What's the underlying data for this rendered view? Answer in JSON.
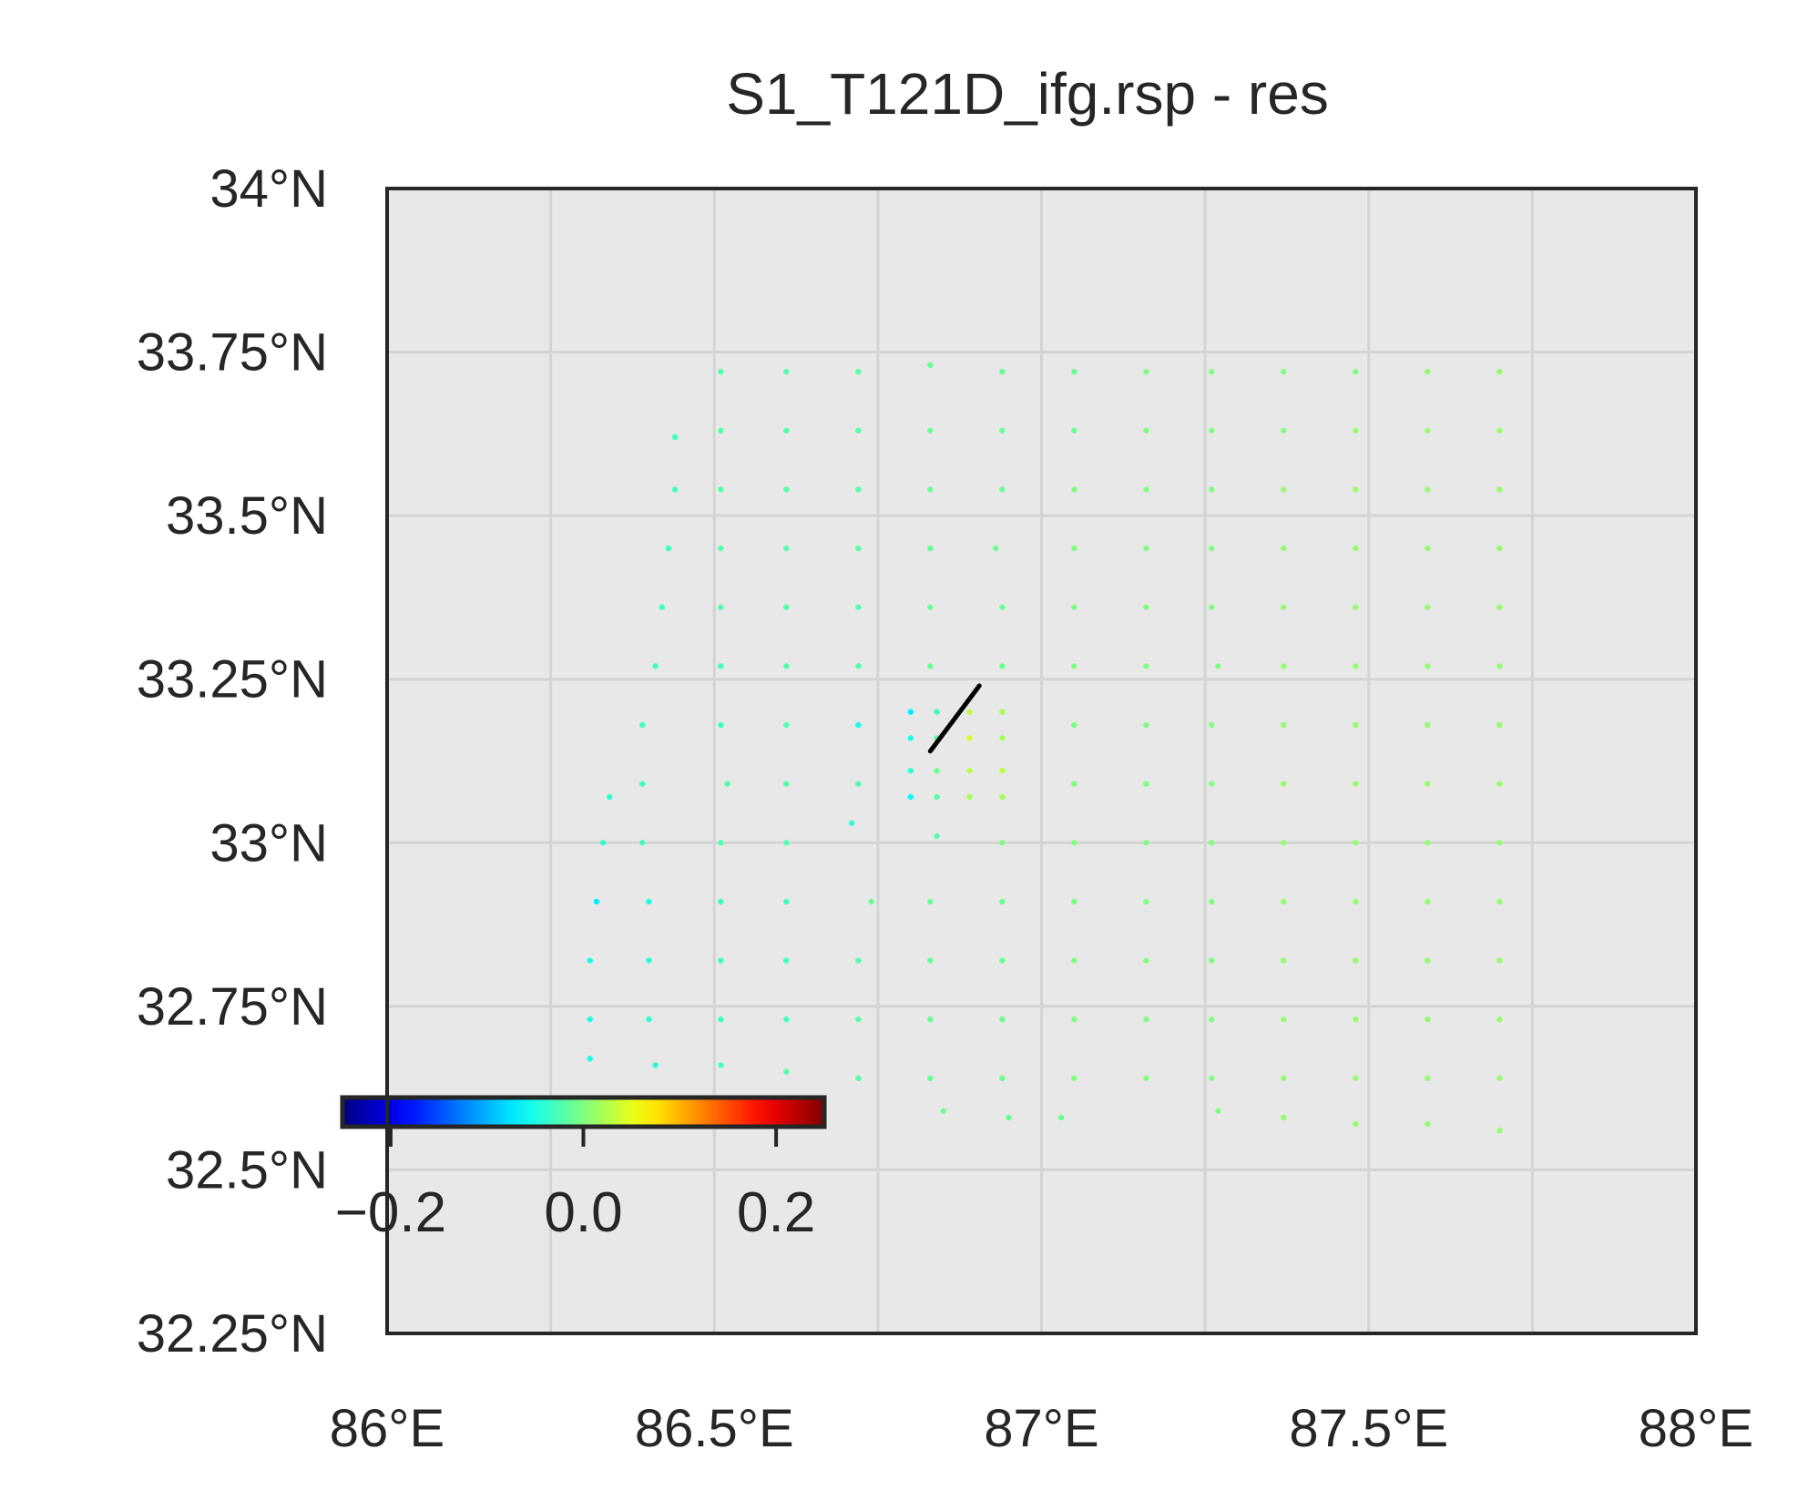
{
  "chart_data": {
    "type": "scatter",
    "title": "S1_T121D_ifg.rsp - res",
    "xlim": [
      86.0,
      88.0
    ],
    "ylim": [
      32.25,
      34.0
    ],
    "x_ticks": [
      86.0,
      86.5,
      87.0,
      87.5,
      88.0
    ],
    "x_tick_labels": [
      "86°E",
      "86.5°E",
      "87°E",
      "87.5°E",
      "88°E"
    ],
    "y_ticks": [
      32.25,
      32.5,
      32.75,
      33.0,
      33.25,
      33.5,
      33.75,
      34.0
    ],
    "y_tick_labels": [
      "32.25°N",
      "32.5°N",
      "32.75°N",
      "33°N",
      "33.25°N",
      "33.5°N",
      "33.75°N",
      "34°N"
    ],
    "grid": true,
    "grid_minor_step_deg": 0.25,
    "background_color": "#e8e8e8",
    "grid_color": "#d4d4d4",
    "colormap": "jet",
    "color_range": [
      -0.25,
      0.25
    ],
    "colorbar": {
      "placement": "inside-lower-left",
      "orientation": "horizontal",
      "ticks": [
        -0.2,
        0.0,
        0.2
      ],
      "tick_labels": [
        "−0.2",
        "0.0",
        "0.2"
      ]
    },
    "fault_trace": {
      "color": "#000000",
      "points": [
        [
          86.83,
          33.14
        ],
        [
          86.905,
          33.24
        ]
      ]
    },
    "points": [
      {
        "lon": 86.51,
        "lat": 33.72,
        "v": -0.02
      },
      {
        "lon": 86.61,
        "lat": 33.72,
        "v": -0.02
      },
      {
        "lon": 86.72,
        "lat": 33.72,
        "v": -0.02
      },
      {
        "lon": 86.83,
        "lat": 33.73,
        "v": -0.01
      },
      {
        "lon": 86.94,
        "lat": 33.72,
        "v": -0.01
      },
      {
        "lon": 87.05,
        "lat": 33.72,
        "v": -0.01
      },
      {
        "lon": 87.16,
        "lat": 33.72,
        "v": 0.0
      },
      {
        "lon": 87.26,
        "lat": 33.72,
        "v": 0.0
      },
      {
        "lon": 87.37,
        "lat": 33.72,
        "v": 0.0
      },
      {
        "lon": 87.48,
        "lat": 33.72,
        "v": 0.0
      },
      {
        "lon": 87.59,
        "lat": 33.72,
        "v": 0.01
      },
      {
        "lon": 87.7,
        "lat": 33.72,
        "v": 0.01
      },
      {
        "lon": 86.44,
        "lat": 33.62,
        "v": -0.03
      },
      {
        "lon": 86.51,
        "lat": 33.63,
        "v": -0.02
      },
      {
        "lon": 86.61,
        "lat": 33.63,
        "v": -0.02
      },
      {
        "lon": 86.72,
        "lat": 33.63,
        "v": -0.02
      },
      {
        "lon": 86.83,
        "lat": 33.63,
        "v": -0.01
      },
      {
        "lon": 86.94,
        "lat": 33.63,
        "v": -0.01
      },
      {
        "lon": 87.05,
        "lat": 33.63,
        "v": -0.01
      },
      {
        "lon": 87.16,
        "lat": 33.63,
        "v": 0.0
      },
      {
        "lon": 87.26,
        "lat": 33.63,
        "v": 0.0
      },
      {
        "lon": 87.37,
        "lat": 33.63,
        "v": 0.0
      },
      {
        "lon": 87.48,
        "lat": 33.63,
        "v": 0.01
      },
      {
        "lon": 87.59,
        "lat": 33.63,
        "v": 0.01
      },
      {
        "lon": 87.7,
        "lat": 33.63,
        "v": 0.01
      },
      {
        "lon": 86.44,
        "lat": 33.54,
        "v": -0.03
      },
      {
        "lon": 86.51,
        "lat": 33.54,
        "v": -0.02
      },
      {
        "lon": 86.61,
        "lat": 33.54,
        "v": -0.02
      },
      {
        "lon": 86.72,
        "lat": 33.54,
        "v": -0.02
      },
      {
        "lon": 86.83,
        "lat": 33.54,
        "v": -0.01
      },
      {
        "lon": 86.94,
        "lat": 33.54,
        "v": -0.01
      },
      {
        "lon": 87.05,
        "lat": 33.54,
        "v": 0.0
      },
      {
        "lon": 87.16,
        "lat": 33.54,
        "v": 0.0
      },
      {
        "lon": 87.26,
        "lat": 33.54,
        "v": 0.0
      },
      {
        "lon": 87.37,
        "lat": 33.54,
        "v": 0.01
      },
      {
        "lon": 87.48,
        "lat": 33.54,
        "v": 0.01
      },
      {
        "lon": 87.59,
        "lat": 33.54,
        "v": 0.01
      },
      {
        "lon": 87.7,
        "lat": 33.54,
        "v": 0.01
      },
      {
        "lon": 86.43,
        "lat": 33.45,
        "v": -0.03
      },
      {
        "lon": 86.51,
        "lat": 33.45,
        "v": -0.02
      },
      {
        "lon": 86.61,
        "lat": 33.45,
        "v": -0.02
      },
      {
        "lon": 86.72,
        "lat": 33.45,
        "v": -0.02
      },
      {
        "lon": 86.83,
        "lat": 33.45,
        "v": -0.01
      },
      {
        "lon": 86.93,
        "lat": 33.45,
        "v": -0.01
      },
      {
        "lon": 87.05,
        "lat": 33.45,
        "v": 0.0
      },
      {
        "lon": 87.16,
        "lat": 33.45,
        "v": 0.0
      },
      {
        "lon": 87.26,
        "lat": 33.45,
        "v": 0.0
      },
      {
        "lon": 87.37,
        "lat": 33.45,
        "v": 0.01
      },
      {
        "lon": 87.48,
        "lat": 33.45,
        "v": 0.01
      },
      {
        "lon": 87.59,
        "lat": 33.45,
        "v": 0.01
      },
      {
        "lon": 87.7,
        "lat": 33.45,
        "v": 0.01
      },
      {
        "lon": 86.42,
        "lat": 33.36,
        "v": -0.03
      },
      {
        "lon": 86.51,
        "lat": 33.36,
        "v": -0.02
      },
      {
        "lon": 86.61,
        "lat": 33.36,
        "v": -0.02
      },
      {
        "lon": 86.72,
        "lat": 33.36,
        "v": -0.02
      },
      {
        "lon": 86.83,
        "lat": 33.36,
        "v": -0.01
      },
      {
        "lon": 86.94,
        "lat": 33.36,
        "v": -0.01
      },
      {
        "lon": 87.05,
        "lat": 33.36,
        "v": 0.0
      },
      {
        "lon": 87.16,
        "lat": 33.36,
        "v": 0.0
      },
      {
        "lon": 87.26,
        "lat": 33.36,
        "v": 0.0
      },
      {
        "lon": 87.37,
        "lat": 33.36,
        "v": 0.01
      },
      {
        "lon": 87.48,
        "lat": 33.36,
        "v": 0.01
      },
      {
        "lon": 87.59,
        "lat": 33.36,
        "v": 0.01
      },
      {
        "lon": 87.7,
        "lat": 33.36,
        "v": 0.01
      },
      {
        "lon": 86.41,
        "lat": 33.27,
        "v": -0.03
      },
      {
        "lon": 86.51,
        "lat": 33.27,
        "v": -0.03
      },
      {
        "lon": 86.61,
        "lat": 33.27,
        "v": -0.02
      },
      {
        "lon": 86.72,
        "lat": 33.27,
        "v": -0.02
      },
      {
        "lon": 86.83,
        "lat": 33.27,
        "v": -0.01
      },
      {
        "lon": 86.94,
        "lat": 33.27,
        "v": -0.01
      },
      {
        "lon": 87.05,
        "lat": 33.27,
        "v": 0.0
      },
      {
        "lon": 87.16,
        "lat": 33.27,
        "v": 0.0
      },
      {
        "lon": 87.27,
        "lat": 33.27,
        "v": 0.0
      },
      {
        "lon": 87.37,
        "lat": 33.27,
        "v": 0.01
      },
      {
        "lon": 87.48,
        "lat": 33.27,
        "v": 0.01
      },
      {
        "lon": 87.59,
        "lat": 33.27,
        "v": 0.01
      },
      {
        "lon": 87.7,
        "lat": 33.27,
        "v": 0.01
      },
      {
        "lon": 86.39,
        "lat": 33.18,
        "v": -0.03
      },
      {
        "lon": 86.51,
        "lat": 33.18,
        "v": -0.03
      },
      {
        "lon": 86.61,
        "lat": 33.18,
        "v": -0.02
      },
      {
        "lon": 86.72,
        "lat": 33.18,
        "v": -0.05
      },
      {
        "lon": 86.8,
        "lat": 33.2,
        "v": -0.07
      },
      {
        "lon": 86.84,
        "lat": 33.2,
        "v": -0.03
      },
      {
        "lon": 86.89,
        "lat": 33.2,
        "v": 0.03
      },
      {
        "lon": 86.94,
        "lat": 33.2,
        "v": 0.02
      },
      {
        "lon": 86.8,
        "lat": 33.16,
        "v": -0.05
      },
      {
        "lon": 86.84,
        "lat": 33.16,
        "v": -0.02
      },
      {
        "lon": 86.89,
        "lat": 33.16,
        "v": 0.04
      },
      {
        "lon": 86.94,
        "lat": 33.16,
        "v": 0.02
      },
      {
        "lon": 87.05,
        "lat": 33.18,
        "v": 0.0
      },
      {
        "lon": 87.16,
        "lat": 33.18,
        "v": 0.0
      },
      {
        "lon": 87.26,
        "lat": 33.18,
        "v": 0.0
      },
      {
        "lon": 87.37,
        "lat": 33.18,
        "v": 0.01
      },
      {
        "lon": 87.48,
        "lat": 33.18,
        "v": 0.01
      },
      {
        "lon": 87.59,
        "lat": 33.18,
        "v": 0.01
      },
      {
        "lon": 87.7,
        "lat": 33.18,
        "v": 0.01
      },
      {
        "lon": 86.39,
        "lat": 33.09,
        "v": -0.03
      },
      {
        "lon": 86.52,
        "lat": 33.09,
        "v": -0.02
      },
      {
        "lon": 86.61,
        "lat": 33.09,
        "v": -0.02
      },
      {
        "lon": 86.72,
        "lat": 33.09,
        "v": -0.02
      },
      {
        "lon": 86.8,
        "lat": 33.11,
        "v": -0.04
      },
      {
        "lon": 86.84,
        "lat": 33.11,
        "v": -0.01
      },
      {
        "lon": 86.89,
        "lat": 33.11,
        "v": 0.03
      },
      {
        "lon": 86.94,
        "lat": 33.11,
        "v": 0.03
      },
      {
        "lon": 87.05,
        "lat": 33.09,
        "v": 0.0
      },
      {
        "lon": 87.16,
        "lat": 33.09,
        "v": 0.0
      },
      {
        "lon": 87.26,
        "lat": 33.09,
        "v": 0.0
      },
      {
        "lon": 87.37,
        "lat": 33.09,
        "v": 0.01
      },
      {
        "lon": 87.48,
        "lat": 33.09,
        "v": 0.01
      },
      {
        "lon": 87.59,
        "lat": 33.09,
        "v": 0.01
      },
      {
        "lon": 87.7,
        "lat": 33.09,
        "v": 0.01
      },
      {
        "lon": 86.34,
        "lat": 33.07,
        "v": -0.04
      },
      {
        "lon": 86.8,
        "lat": 33.07,
        "v": -0.06
      },
      {
        "lon": 86.84,
        "lat": 33.07,
        "v": -0.02
      },
      {
        "lon": 86.89,
        "lat": 33.07,
        "v": 0.02
      },
      {
        "lon": 86.94,
        "lat": 33.07,
        "v": 0.02
      },
      {
        "lon": 86.71,
        "lat": 33.03,
        "v": -0.04
      },
      {
        "lon": 86.33,
        "lat": 33.0,
        "v": -0.04
      },
      {
        "lon": 86.39,
        "lat": 33.0,
        "v": -0.03
      },
      {
        "lon": 86.51,
        "lat": 33.0,
        "v": -0.02
      },
      {
        "lon": 86.61,
        "lat": 33.0,
        "v": -0.02
      },
      {
        "lon": 86.84,
        "lat": 33.01,
        "v": -0.02
      },
      {
        "lon": 86.94,
        "lat": 33.0,
        "v": 0.0
      },
      {
        "lon": 87.05,
        "lat": 33.0,
        "v": 0.0
      },
      {
        "lon": 87.16,
        "lat": 33.0,
        "v": 0.0
      },
      {
        "lon": 87.26,
        "lat": 33.0,
        "v": 0.0
      },
      {
        "lon": 87.37,
        "lat": 33.0,
        "v": 0.01
      },
      {
        "lon": 87.48,
        "lat": 33.0,
        "v": 0.01
      },
      {
        "lon": 87.59,
        "lat": 33.0,
        "v": 0.01
      },
      {
        "lon": 87.7,
        "lat": 33.0,
        "v": 0.01
      },
      {
        "lon": 86.32,
        "lat": 32.91,
        "v": -0.07
      },
      {
        "lon": 86.4,
        "lat": 32.91,
        "v": -0.05
      },
      {
        "lon": 86.51,
        "lat": 32.91,
        "v": -0.03
      },
      {
        "lon": 86.61,
        "lat": 32.91,
        "v": -0.03
      },
      {
        "lon": 86.74,
        "lat": 32.91,
        "v": -0.01
      },
      {
        "lon": 86.83,
        "lat": 32.91,
        "v": -0.01
      },
      {
        "lon": 86.94,
        "lat": 32.91,
        "v": -0.01
      },
      {
        "lon": 87.05,
        "lat": 32.91,
        "v": 0.0
      },
      {
        "lon": 87.16,
        "lat": 32.91,
        "v": 0.0
      },
      {
        "lon": 87.26,
        "lat": 32.91,
        "v": 0.0
      },
      {
        "lon": 87.37,
        "lat": 32.91,
        "v": 0.01
      },
      {
        "lon": 87.48,
        "lat": 32.91,
        "v": 0.01
      },
      {
        "lon": 87.59,
        "lat": 32.91,
        "v": 0.01
      },
      {
        "lon": 87.7,
        "lat": 32.91,
        "v": 0.01
      },
      {
        "lon": 86.31,
        "lat": 32.82,
        "v": -0.05
      },
      {
        "lon": 86.4,
        "lat": 32.82,
        "v": -0.04
      },
      {
        "lon": 86.51,
        "lat": 32.82,
        "v": -0.03
      },
      {
        "lon": 86.61,
        "lat": 32.82,
        "v": -0.03
      },
      {
        "lon": 86.72,
        "lat": 32.82,
        "v": -0.02
      },
      {
        "lon": 86.83,
        "lat": 32.82,
        "v": -0.01
      },
      {
        "lon": 86.94,
        "lat": 32.82,
        "v": -0.01
      },
      {
        "lon": 87.05,
        "lat": 32.82,
        "v": 0.0
      },
      {
        "lon": 87.16,
        "lat": 32.82,
        "v": 0.0
      },
      {
        "lon": 87.26,
        "lat": 32.82,
        "v": 0.0
      },
      {
        "lon": 87.37,
        "lat": 32.82,
        "v": 0.01
      },
      {
        "lon": 87.48,
        "lat": 32.82,
        "v": 0.01
      },
      {
        "lon": 87.59,
        "lat": 32.82,
        "v": 0.01
      },
      {
        "lon": 87.7,
        "lat": 32.82,
        "v": 0.01
      },
      {
        "lon": 86.31,
        "lat": 32.73,
        "v": -0.05
      },
      {
        "lon": 86.4,
        "lat": 32.73,
        "v": -0.04
      },
      {
        "lon": 86.51,
        "lat": 32.73,
        "v": -0.03
      },
      {
        "lon": 86.61,
        "lat": 32.73,
        "v": -0.03
      },
      {
        "lon": 86.72,
        "lat": 32.73,
        "v": -0.02
      },
      {
        "lon": 86.83,
        "lat": 32.73,
        "v": -0.01
      },
      {
        "lon": 86.94,
        "lat": 32.73,
        "v": -0.01
      },
      {
        "lon": 87.05,
        "lat": 32.73,
        "v": 0.0
      },
      {
        "lon": 87.16,
        "lat": 32.73,
        "v": 0.0
      },
      {
        "lon": 87.26,
        "lat": 32.73,
        "v": 0.0
      },
      {
        "lon": 87.37,
        "lat": 32.73,
        "v": 0.01
      },
      {
        "lon": 87.48,
        "lat": 32.73,
        "v": 0.01
      },
      {
        "lon": 87.59,
        "lat": 32.73,
        "v": 0.01
      },
      {
        "lon": 87.7,
        "lat": 32.73,
        "v": 0.01
      },
      {
        "lon": 86.31,
        "lat": 32.67,
        "v": -0.05
      },
      {
        "lon": 86.41,
        "lat": 32.66,
        "v": -0.04
      },
      {
        "lon": 86.51,
        "lat": 32.66,
        "v": -0.03
      },
      {
        "lon": 86.61,
        "lat": 32.65,
        "v": -0.02
      },
      {
        "lon": 86.72,
        "lat": 32.64,
        "v": -0.02
      },
      {
        "lon": 86.83,
        "lat": 32.64,
        "v": -0.01
      },
      {
        "lon": 86.94,
        "lat": 32.64,
        "v": -0.01
      },
      {
        "lon": 87.05,
        "lat": 32.64,
        "v": 0.0
      },
      {
        "lon": 87.16,
        "lat": 32.64,
        "v": 0.0
      },
      {
        "lon": 87.26,
        "lat": 32.64,
        "v": 0.0
      },
      {
        "lon": 87.37,
        "lat": 32.64,
        "v": 0.01
      },
      {
        "lon": 87.48,
        "lat": 32.64,
        "v": 0.01
      },
      {
        "lon": 87.59,
        "lat": 32.64,
        "v": 0.01
      },
      {
        "lon": 87.7,
        "lat": 32.64,
        "v": 0.01
      },
      {
        "lon": 86.85,
        "lat": 32.59,
        "v": -0.01
      },
      {
        "lon": 86.95,
        "lat": 32.58,
        "v": -0.01
      },
      {
        "lon": 87.03,
        "lat": 32.58,
        "v": -0.01
      },
      {
        "lon": 87.27,
        "lat": 32.59,
        "v": 0.0
      },
      {
        "lon": 87.37,
        "lat": 32.58,
        "v": 0.01
      },
      {
        "lon": 87.48,
        "lat": 32.57,
        "v": 0.01
      },
      {
        "lon": 87.59,
        "lat": 32.57,
        "v": 0.01
      },
      {
        "lon": 87.7,
        "lat": 32.56,
        "v": 0.01
      }
    ]
  }
}
